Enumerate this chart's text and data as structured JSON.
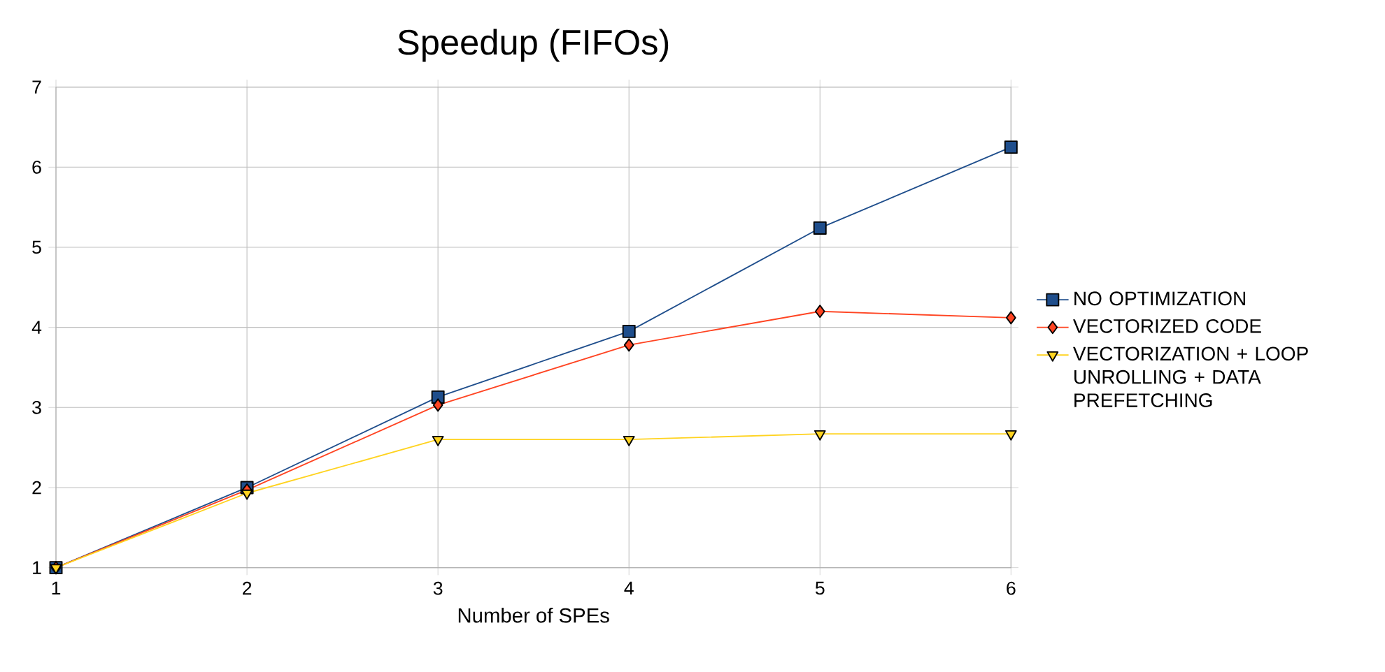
{
  "chart_data": {
    "type": "line",
    "title": "Speedup (FIFOs)",
    "xlabel": "Number of SPEs",
    "x": [
      1,
      2,
      3,
      4,
      5,
      6
    ],
    "series": [
      {
        "name": "NO OPTIMIZATION",
        "color": "#1f4e8c",
        "marker": "square",
        "values": [
          1,
          2,
          3.13,
          3.95,
          5.24,
          6.25
        ]
      },
      {
        "name": "VECTORIZED CODE",
        "color": "#ff4422",
        "marker": "diamond",
        "values": [
          1,
          1.97,
          3.03,
          3.78,
          4.2,
          4.12
        ]
      },
      {
        "name": "VECTORIZATION + LOOP UNROLLING + DATA PREFETCHING",
        "color": "#ffd320",
        "marker": "triangle",
        "values": [
          1,
          1.93,
          2.6,
          2.6,
          2.67,
          2.67
        ]
      }
    ],
    "xlim": [
      1,
      6
    ],
    "xticks": [
      1,
      2,
      3,
      4,
      5,
      6
    ],
    "ylim": [
      1,
      7
    ],
    "yticks": [
      1,
      2,
      3,
      4,
      5,
      6,
      7
    ],
    "grid": true,
    "legend": "right",
    "line_style": "solid"
  }
}
